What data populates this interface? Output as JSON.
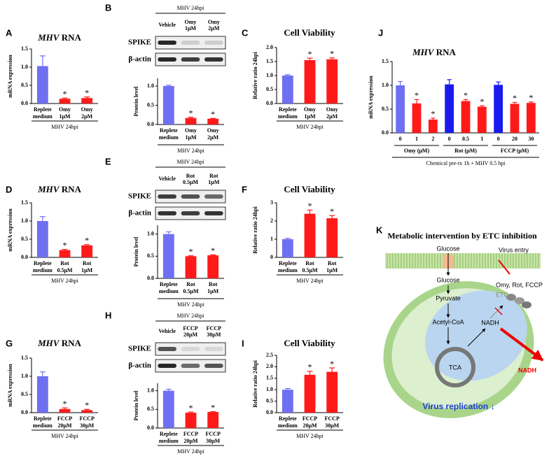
{
  "chart_data": [
    {
      "type": "bar",
      "panel": "A",
      "title": "MHV RNA",
      "title_italic_first_word": true,
      "ylabel": "mRNA expression",
      "xlabel": "MHV 24hpi",
      "categories": [
        "Replete medium",
        "Omy 1μM",
        "Omy 2μM"
      ],
      "values": [
        1.03,
        0.13,
        0.15
      ],
      "errors": [
        0.28,
        0.02,
        0.03
      ],
      "colors": [
        "#6f6ff2",
        "#ff1a1a",
        "#ff1a1a"
      ],
      "stars": [
        null,
        "*",
        "*"
      ],
      "ylim": [
        0,
        1.5
      ],
      "yticks": [
        {
          "value": 0,
          "label": "0.0"
        },
        {
          "value": 0.5,
          "label": "0.5"
        },
        {
          "value": 1,
          "label": "1.0"
        },
        {
          "value": 1.5,
          "label": "1.5"
        }
      ]
    },
    {
      "type": "bar",
      "ylabel": "Protein level",
      "xlabel": "MHV 24hpi",
      "categories": [
        "Replete medium",
        "Omy 1μM",
        "Omy 2μM"
      ],
      "values": [
        1.0,
        0.17,
        0.15
      ],
      "errors": [
        0.02,
        0.02,
        0.01
      ],
      "colors": [
        "#6f6ff2",
        "#ff1a1a",
        "#ff1a1a"
      ],
      "stars": [
        null,
        "*",
        "*"
      ],
      "ylim": [
        0,
        1.2
      ],
      "yticks": [
        {
          "value": 0,
          "label": "0.0"
        },
        {
          "value": 0.5,
          "label": "0.5"
        },
        {
          "value": 1,
          "label": "1.0"
        }
      ]
    },
    {
      "type": "bar",
      "panel": "C",
      "title": "Cell Viability",
      "ylabel": "Relative ratio 24hpi",
      "xlabel": "MHV 24hpi",
      "categories": [
        "Replete medium",
        "Omy 1μM",
        "Omy 2μM"
      ],
      "values": [
        1.0,
        1.55,
        1.58
      ],
      "errors": [
        0.03,
        0.07,
        0.05
      ],
      "colors": [
        "#6f6ff2",
        "#ff1a1a",
        "#ff1a1a"
      ],
      "stars": [
        null,
        "*",
        "*"
      ],
      "ylim": [
        0,
        2
      ],
      "yticks": [
        {
          "value": 0,
          "label": "0.0"
        },
        {
          "value": 0.5,
          "label": "0.5"
        },
        {
          "value": 1,
          "label": "1.0"
        },
        {
          "value": 1.5,
          "label": "1.5"
        },
        {
          "value": 2,
          "label": "2.0"
        }
      ]
    },
    {
      "type": "bar",
      "panel": "D",
      "title": "MHV RNA",
      "title_italic_first_word": true,
      "ylabel": "mRNA expression",
      "xlabel": "MHV 24hpi",
      "categories": [
        "Replete medium",
        "Rot 0.5μM",
        "Rot 1μM"
      ],
      "values": [
        1.0,
        0.2,
        0.33
      ],
      "errors": [
        0.12,
        0.02,
        0.02
      ],
      "colors": [
        "#6f6ff2",
        "#ff1a1a",
        "#ff1a1a"
      ],
      "stars": [
        null,
        "*",
        "*"
      ],
      "ylim": [
        0,
        1.5
      ],
      "yticks": [
        {
          "value": 0,
          "label": "0.0"
        },
        {
          "value": 0.5,
          "label": "0.5"
        },
        {
          "value": 1,
          "label": "1.0"
        },
        {
          "value": 1.5,
          "label": "1.5"
        }
      ]
    },
    {
      "type": "bar",
      "ylabel": "Protein level",
      "xlabel": "MHV 24hpi",
      "categories": [
        "Replete medium",
        "Rot 0.5μM",
        "Rot 1μM"
      ],
      "values": [
        1.0,
        0.5,
        0.52
      ],
      "errors": [
        0.05,
        0.01,
        0.01
      ],
      "colors": [
        "#6f6ff2",
        "#ff1a1a",
        "#ff1a1a"
      ],
      "stars": [
        null,
        "*",
        "*"
      ],
      "ylim": [
        0,
        1.2
      ],
      "yticks": [
        {
          "value": 0,
          "label": "0.0"
        },
        {
          "value": 0.5,
          "label": "0.5"
        },
        {
          "value": 1,
          "label": "1.0"
        }
      ]
    },
    {
      "type": "bar",
      "panel": "F",
      "title": "Cell Viability",
      "ylabel": "Relative ratio 24hpi",
      "xlabel": "MHV 24hpi",
      "categories": [
        "Replete medium",
        "Rot 0.5μM",
        "Rot 1μM"
      ],
      "values": [
        1.0,
        2.4,
        2.15
      ],
      "errors": [
        0.05,
        0.2,
        0.15
      ],
      "colors": [
        "#6f6ff2",
        "#ff1a1a",
        "#ff1a1a"
      ],
      "stars": [
        null,
        "*",
        "*"
      ],
      "ylim": [
        0,
        3
      ],
      "yticks": [
        0,
        1,
        2,
        3
      ]
    },
    {
      "type": "bar",
      "panel": "G",
      "title": "MHV RNA",
      "title_italic_first_word": true,
      "ylabel": "mRNA expression",
      "xlabel": "MHV 24hpi",
      "categories": [
        "Replete medium",
        "FCCP 20μM",
        "FCCP 30μM"
      ],
      "values": [
        1.0,
        0.1,
        0.07
      ],
      "errors": [
        0.12,
        0.03,
        0.02
      ],
      "colors": [
        "#6f6ff2",
        "#ff1a1a",
        "#ff1a1a"
      ],
      "stars": [
        null,
        "*",
        "*"
      ],
      "ylim": [
        0,
        1.5
      ],
      "yticks": [
        {
          "value": 0,
          "label": "0.0"
        },
        {
          "value": 0.5,
          "label": "0.5"
        },
        {
          "value": 1,
          "label": "1.0"
        },
        {
          "value": 1.5,
          "label": "1.5"
        }
      ]
    },
    {
      "type": "bar",
      "ylabel": "Protein level",
      "xlabel": "MHV 24hpi",
      "categories": [
        "Replete medium",
        "FCCP 20μM",
        "FCCP 30μM"
      ],
      "values": [
        1.0,
        0.41,
        0.43
      ],
      "errors": [
        0.04,
        0.02,
        0.01
      ],
      "colors": [
        "#6f6ff2",
        "#ff1a1a",
        "#ff1a1a"
      ],
      "stars": [
        null,
        "*",
        "*"
      ],
      "ylim": [
        0,
        1.2
      ],
      "yticks": [
        {
          "value": 0,
          "label": "0.0"
        },
        {
          "value": 0.5,
          "label": "0.5"
        },
        {
          "value": 1,
          "label": "1.0"
        }
      ]
    },
    {
      "type": "bar",
      "panel": "I",
      "title": "Cell Viability",
      "ylabel": "Relative ratio 24hpi",
      "xlabel": "MHV 24hpi",
      "categories": [
        "Replete medium",
        "FCCP 20μM",
        "FCCP 30μM"
      ],
      "values": [
        1.0,
        1.65,
        1.78
      ],
      "errors": [
        0.05,
        0.15,
        0.17
      ],
      "colors": [
        "#6f6ff2",
        "#ff1a1a",
        "#ff1a1a"
      ],
      "stars": [
        null,
        "*",
        "*"
      ],
      "ylim": [
        0,
        2.5
      ],
      "yticks": [
        {
          "value": 0,
          "label": "0.0"
        },
        {
          "value": 0.5,
          "label": "0.5"
        },
        {
          "value": 1,
          "label": "1.0"
        },
        {
          "value": 1.5,
          "label": "1.5"
        },
        {
          "value": 2,
          "label": "2.0"
        },
        {
          "value": 2.5,
          "label": "2.5"
        }
      ]
    },
    {
      "type": "bar",
      "panel": "J",
      "title": "MHV RNA",
      "title_italic_first_word": true,
      "ylabel": "mRNA expression",
      "xlabel": "Chemical pre-tx 1h + MHV 0.5 hpi",
      "groups": [
        "Omy (μM)",
        "Rot (μM)",
        "FCCP (μM)"
      ],
      "categories": [
        "0",
        "1",
        "2",
        "0",
        "0.5",
        "1",
        "0",
        "20",
        "30"
      ],
      "values": [
        1.0,
        0.62,
        0.28,
        1.02,
        0.67,
        0.55,
        1.01,
        0.61,
        0.63
      ],
      "errors": [
        0.08,
        0.08,
        0.03,
        0.1,
        0.03,
        0.02,
        0.06,
        0.03,
        0.02
      ],
      "colors": [
        "#6f6ff2",
        "#ff1a1a",
        "#ff1a1a",
        "#1a1aee",
        "#ff1a1a",
        "#ff1a1a",
        "#1a1aee",
        "#ff1a1a",
        "#ff1a1a"
      ],
      "stars": [
        null,
        "*",
        "*",
        null,
        "*",
        "*",
        null,
        "*",
        "*"
      ],
      "ylim": [
        0,
        1.5
      ],
      "yticks": [
        {
          "value": 0,
          "label": "0.0"
        },
        {
          "value": 0.5,
          "label": "0.5"
        },
        {
          "value": 1,
          "label": "1.0"
        },
        {
          "value": 1.5,
          "label": "1.5"
        }
      ]
    }
  ],
  "blots": [
    {
      "panel": "B",
      "header": "MHV 24hpi",
      "lanes": [
        "Vehicle",
        "Omy 1μM",
        "Omy 2μM"
      ],
      "rows": [
        "SPIKE",
        "β-actin"
      ]
    },
    {
      "panel": "E",
      "header": "MHV 24hpi",
      "lanes": [
        "Vehicle",
        "Rot 0.5μM",
        "Rot 1μM"
      ],
      "rows": [
        "SPIKE",
        "β-actin"
      ]
    },
    {
      "panel": "H",
      "header": "MHV 24hpi",
      "lanes": [
        "Vehicle",
        "FCCP 20μM",
        "FCCP 30μM"
      ],
      "rows": [
        "SPIKE",
        "β-actin"
      ]
    }
  ],
  "diagram": {
    "panel": "K",
    "title": "Metabolic intervention by ETC inhibition",
    "glucose_out": "Glucose",
    "virus_entry": "Virus entry",
    "glucose_in": "Glucose",
    "inhibitors": "Omy, Rot, FCCP",
    "pyruvate": "Pyruvate",
    "etc": "ETC",
    "acetyl_coa": "Acetyl-CoA",
    "nadh_in": "NADH",
    "tca": "TCA",
    "nadh_out": "NADH",
    "replication": "Virus replication ↓"
  }
}
